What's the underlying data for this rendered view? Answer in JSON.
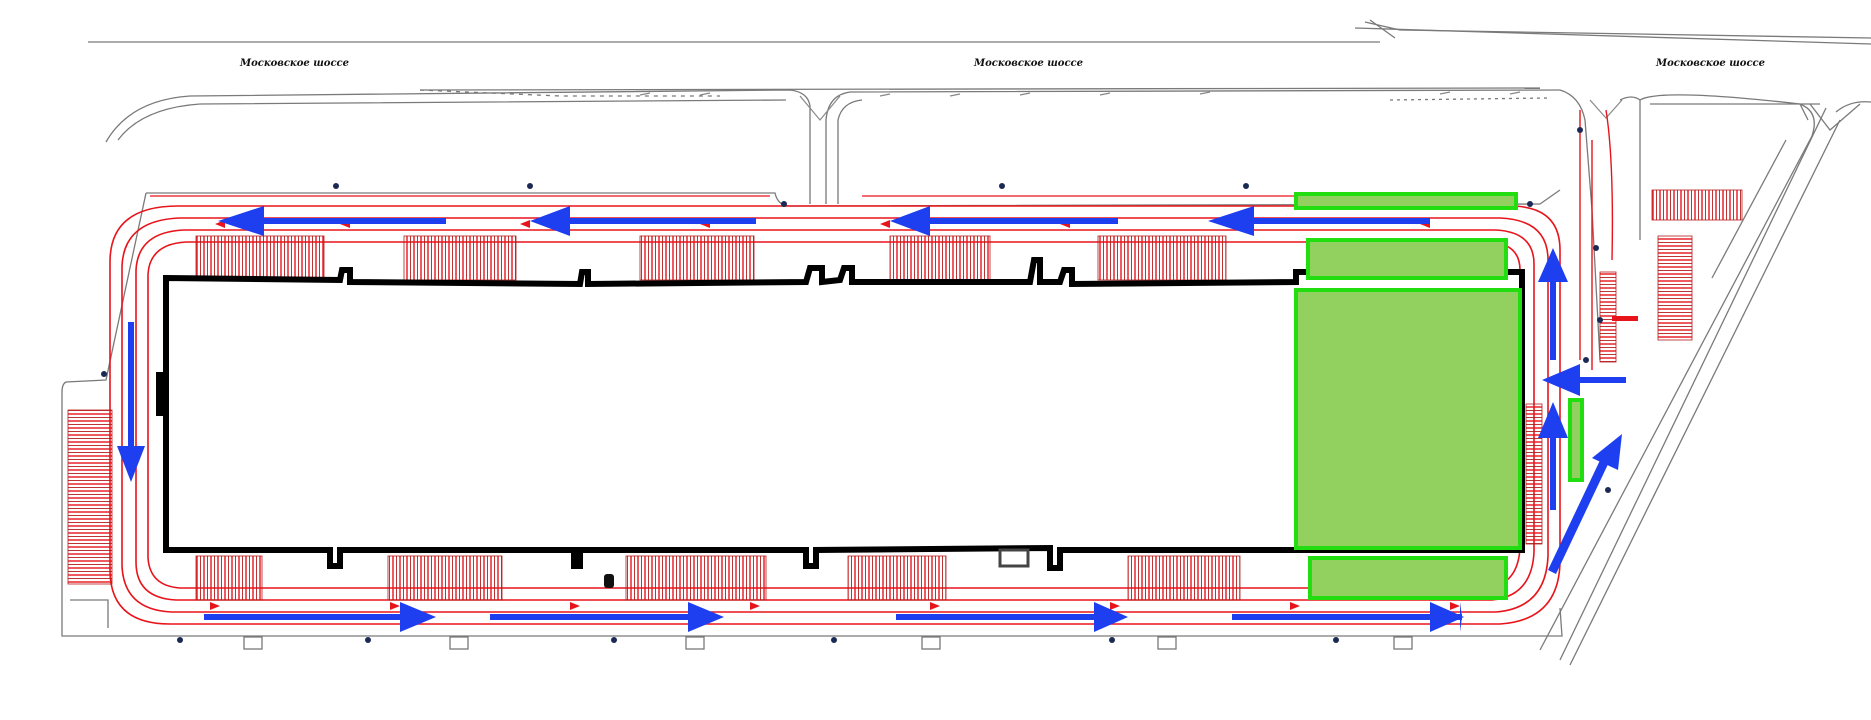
{
  "road_labels": [
    "Московское шоссе",
    "Московское шоссе",
    "Московское шоссе"
  ],
  "colors": {
    "background": "#ffffff",
    "road_outline": "#7a7a7a",
    "traffic_lane": "#e8141b",
    "parking_hatch": "#e8141b",
    "building_outline": "#000000",
    "flow_arrow": "#1e3ff0",
    "zone_fill": "#92d060",
    "zone_outline": "#22dd10"
  },
  "icons": [
    "flow-arrow-icon",
    "vehicle-icon"
  ]
}
